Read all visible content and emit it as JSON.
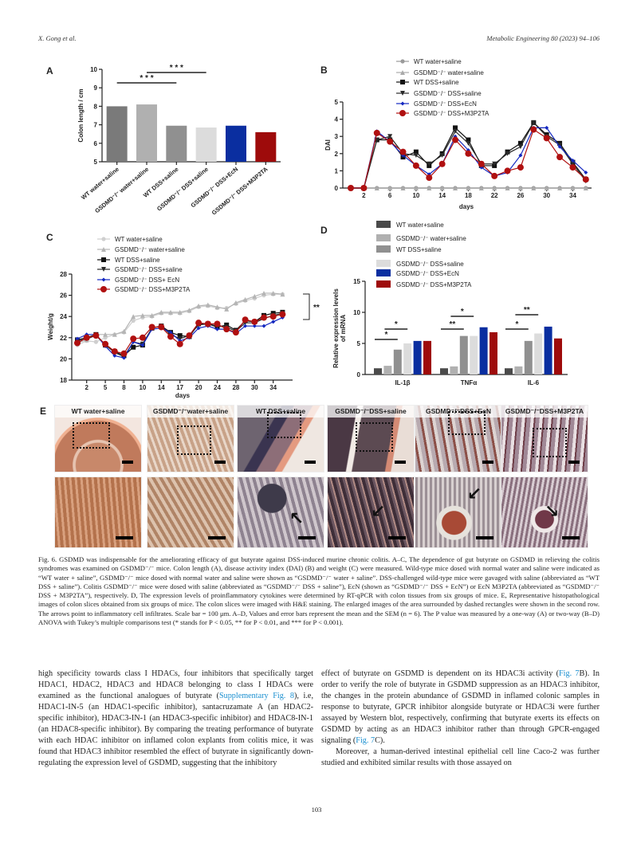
{
  "header": {
    "authors": "X. Gong et al.",
    "journal": "Metabolic Engineering 80 (2023) 94–106"
  },
  "page_number": "103",
  "groups": [
    "WT water+saline",
    "GSDMD⁻/⁻ water+saline",
    "WT DSS+saline",
    "GSDMD⁻/⁻ DSS+saline",
    "GSDMD⁻/⁻ DSS+EcN",
    "GSDMD⁻/⁻ DSS+M3P2TA"
  ],
  "colors": {
    "wt_water": "#7a7a7a",
    "gsdmd_water": "#b0b0b0",
    "wt_dss": "#909090",
    "gsdmd_dss": "#dcdcdc",
    "ecn": "#0a2ea0",
    "m3p2ta": "#9e0b0b",
    "link": "#1a8fd0"
  },
  "chart_data": [
    {
      "panel": "A",
      "type": "bar",
      "ylabel": "Colon length / cm",
      "xlabel": "",
      "ylim": [
        5,
        10
      ],
      "yticks": [
        5,
        6,
        7,
        8,
        9,
        10
      ],
      "categories": [
        "WT water+saline",
        "GSDMD⁻/⁻ water+saline",
        "WT DSS+saline",
        "GSDMD⁻/⁻ DSS+saline",
        "GSDMD⁻/⁻ DSS+EcN",
        "GSDMD⁻/⁻ DSS+M3P2TA"
      ],
      "values": [
        8.0,
        8.1,
        6.95,
        6.85,
        6.95,
        6.6
      ],
      "significance": [
        {
          "from": 0,
          "to": 2,
          "label": "* * *"
        },
        {
          "from": 1,
          "to": 3,
          "label": "* * *"
        }
      ]
    },
    {
      "panel": "B",
      "type": "line",
      "ylabel": "DAI",
      "xlabel": "days",
      "ylim": [
        0,
        5
      ],
      "yticks": [
        0,
        1,
        2,
        3,
        4,
        5
      ],
      "xticks": [
        2,
        6,
        10,
        14,
        18,
        22,
        26,
        30,
        34
      ],
      "x": [
        0,
        2,
        4,
        6,
        8,
        10,
        12,
        14,
        16,
        18,
        20,
        22,
        24,
        26,
        28,
        30,
        32,
        34,
        36
      ],
      "legend": "top",
      "series": [
        {
          "name": "WT water+saline",
          "marker": "circle",
          "color": "#9a9a9a",
          "values": [
            0,
            0,
            0,
            0,
            0,
            0,
            0,
            0,
            0,
            0,
            0,
            0,
            0,
            0,
            0,
            0,
            0,
            0,
            0
          ]
        },
        {
          "name": "GSDMD⁻/⁻ water+saline",
          "marker": "triangle",
          "color": "#aaaaaa",
          "values": [
            0,
            0,
            0,
            0,
            0,
            0,
            0,
            0,
            0,
            0,
            0,
            0,
            0,
            0,
            0,
            0,
            0,
            0,
            0
          ]
        },
        {
          "name": "WT DSS+saline",
          "marker": "square",
          "color": "#111111",
          "values": [
            0,
            0,
            2.8,
            2.8,
            1.8,
            2.1,
            1.3,
            2.0,
            3.5,
            2.8,
            1.3,
            1.3,
            2.1,
            2.6,
            3.8,
            3.1,
            2.6,
            1.5,
            0.5
          ]
        },
        {
          "name": "GSDMD⁻/⁻ DSS+saline",
          "marker": "triangle-down",
          "color": "#2a2a2a",
          "values": [
            0,
            0,
            2.8,
            3.0,
            2.0,
            1.9,
            1.4,
            1.9,
            3.3,
            2.6,
            1.4,
            1.4,
            2.0,
            2.4,
            3.8,
            3.0,
            2.5,
            1.4,
            0.4
          ]
        },
        {
          "name": "GSDMD⁻/⁻ DSS+EcN",
          "marker": "diamond",
          "color": "#1428c0",
          "values": [
            0,
            0,
            3.3,
            2.7,
            1.9,
            1.3,
            0.8,
            1.4,
            3.0,
            2.2,
            1.2,
            0.7,
            0.9,
            1.9,
            3.5,
            3.5,
            2.4,
            1.6,
            0.9
          ]
        },
        {
          "name": "GSDMD⁻/⁻ DSS+M3P2TA",
          "marker": "big-circle",
          "color": "#b01010",
          "values": [
            0,
            0,
            3.2,
            2.7,
            2.1,
            1.3,
            0.6,
            1.4,
            2.8,
            2.0,
            1.4,
            0.7,
            1.0,
            1.2,
            3.4,
            2.9,
            1.8,
            1.2,
            0.5
          ]
        }
      ]
    },
    {
      "panel": "C",
      "type": "line",
      "ylabel": "Weight/g",
      "xlabel": "days",
      "ylim": [
        18,
        28
      ],
      "yticks": [
        18,
        20,
        22,
        24,
        26,
        28
      ],
      "xticks": [
        2,
        5,
        8,
        10,
        14,
        17,
        20,
        24,
        28,
        30,
        34
      ],
      "legend": "top-left",
      "significance": {
        "label": "**"
      },
      "series": [
        {
          "name": "WT water+saline",
          "marker": "circle",
          "color": "#cfcfcf",
          "values": [
            21.3,
            21.7,
            21.6,
            22.0,
            22.3,
            22.5,
            23.6,
            23.9,
            24.0,
            24.3,
            24.3,
            24.3,
            24.5,
            24.9,
            25.0,
            24.8,
            24.8,
            25.2,
            25.5,
            25.7,
            26.0,
            26.1,
            26.1
          ]
        },
        {
          "name": "GSDMD⁻/⁻ water+saline",
          "marker": "triangle",
          "color": "#b5b5b5",
          "values": [
            21.5,
            21.8,
            22.3,
            22.3,
            22.3,
            22.6,
            24.0,
            24.1,
            24.1,
            24.4,
            24.4,
            24.4,
            24.6,
            25.0,
            25.1,
            24.9,
            24.7,
            25.3,
            25.6,
            25.9,
            26.2,
            26.2,
            26.1
          ]
        },
        {
          "name": "WT DSS+saline",
          "marker": "square",
          "color": "#111111",
          "values": [
            21.8,
            22.0,
            22.3,
            21.3,
            20.7,
            20.3,
            21.1,
            21.3,
            22.9,
            23.1,
            22.5,
            22.2,
            22.1,
            23.3,
            23.3,
            23.0,
            23.2,
            22.7,
            23.6,
            23.5,
            24.1,
            24.3,
            24.4
          ]
        },
        {
          "name": "GSDMD⁻/⁻ DSS+saline",
          "marker": "triangle-down",
          "color": "#2a2a2a",
          "values": [
            21.7,
            21.9,
            22.2,
            21.3,
            20.6,
            20.2,
            21.6,
            21.4,
            22.9,
            23.1,
            22.3,
            21.9,
            22.2,
            23.2,
            23.3,
            23.1,
            23.0,
            22.6,
            23.4,
            23.4,
            23.8,
            24.1,
            24.3
          ]
        },
        {
          "name": "GSDMD⁻/⁻ DSS+ EcN",
          "marker": "diamond",
          "color": "#1428c0",
          "values": [
            21.9,
            22.3,
            22.3,
            21.2,
            20.3,
            20.1,
            21.6,
            21.3,
            22.8,
            22.9,
            22.5,
            21.7,
            22.0,
            22.9,
            23.1,
            22.8,
            22.8,
            22.4,
            23.1,
            23.1,
            23.1,
            23.5,
            23.9
          ]
        },
        {
          "name": "GSDMD⁻/⁻ DSS+M3P2TA",
          "marker": "big-circle",
          "color": "#b01010",
          "values": [
            21.5,
            22.0,
            22.2,
            21.4,
            20.7,
            20.5,
            21.9,
            22.0,
            23.0,
            23.0,
            22.1,
            21.4,
            22.2,
            23.4,
            23.3,
            23.3,
            22.8,
            22.5,
            23.7,
            23.5,
            23.9,
            24.0,
            24.2
          ]
        }
      ]
    },
    {
      "panel": "D",
      "type": "bar",
      "ylabel": "Relative expression levels of mRNA",
      "ylabel_lines": [
        "Relative expression levels",
        "of mRNA"
      ],
      "ylim": [
        0,
        15
      ],
      "yticks": [
        0,
        5,
        10,
        15
      ],
      "categories": [
        "IL-1β",
        "TNFα",
        "IL-6"
      ],
      "legend": "top",
      "series": [
        {
          "name": "WT water+saline",
          "color": "#4a4a4a",
          "values": [
            1.0,
            1.0,
            1.0
          ]
        },
        {
          "name": "GSDMD⁻/⁻ water+saline",
          "color": "#b0b0b0",
          "values": [
            1.4,
            1.3,
            1.3
          ]
        },
        {
          "name": "WT DSS+saline",
          "color": "#909090",
          "values": [
            4.0,
            6.2,
            5.4
          ]
        },
        {
          "name": "GSDMD⁻/⁻ DSS+saline",
          "color": "#dcdcdc",
          "values": [
            5.0,
            6.2,
            6.6
          ]
        },
        {
          "name": "GSDMD⁻/⁻ DSS+EcN",
          "color": "#0a2ea0",
          "values": [
            5.4,
            7.6,
            7.7
          ]
        },
        {
          "name": "GSDMD⁻/⁻ DSS+M3P2TA",
          "color": "#9e0b0b",
          "values": [
            5.4,
            6.8,
            5.8
          ]
        }
      ],
      "significance": [
        {
          "category": 0,
          "from": 0,
          "to": 2,
          "label": "*"
        },
        {
          "category": 0,
          "from": 1,
          "to": 3,
          "label": "*"
        },
        {
          "category": 1,
          "from": 0,
          "to": 2,
          "label": "**"
        },
        {
          "category": 1,
          "from": 1,
          "to": 3,
          "label": "*"
        },
        {
          "category": 2,
          "from": 0,
          "to": 2,
          "label": "*"
        },
        {
          "category": 2,
          "from": 1,
          "to": 3,
          "label": "**"
        }
      ]
    }
  ],
  "panel_letters": [
    "A",
    "B",
    "C",
    "D",
    "E"
  ],
  "histology": {
    "labels": [
      "WT water+saline",
      "GSDMD⁻/⁻water+saline",
      "WT DSS+saline",
      "GSDMD⁻/⁻DSS+saline",
      "GSDMD⁻/⁻DSS+EcN",
      "GSDMD⁻/⁻DSS+M3P2TA"
    ]
  },
  "caption": {
    "title": "Fig. 6. GSDMD was indispensable for the ameliorating efficacy of gut butyrate against DSS-induced murine chronic colitis.",
    "body": " A–C, The dependence of gut butyrate on GSDMD in relieving the colitis syndromes was examined on GSDMD⁻/⁻ mice. Colon length (A), disease activity index (DAI) (B) and weight (C) were measured. Wild-type mice dosed with normal water and saline were indicated as “WT water + saline”, GSDMD⁻/⁻ mice dosed with normal water and saline were shown as “GSDMD⁻/⁻ water + saline”. DSS-challenged wild-type mice were gavaged with saline (abbreviated as “WT DSS + saline”). Colitis GSDMD⁻/⁻ mice were dosed with saline (abbreviated as “GSDMD⁻/⁻ DSS + saline”), EcN (shown as “GSDMD⁻/⁻ DSS + EcN”) or EcN M3P2TA (abbreviated as “GSDMD⁻/⁻ DSS + M3P2TA”), respectively. D, The expression levels of proinflammatory cytokines were determined by RT-qPCR with colon tissues from six groups of mice. E, Representative histopathological images of colon slices obtained from six groups of mice. The colon slices were imaged with H&E staining. The enlarged images of the area surrounded by dashed rectangles were shown in the second row. The arrows point to inflammatory cell infiltrates. Scale bar = 100 μm. A–D, Values and error bars represent the mean and the SEM (n = 6). The P value was measured by a one-way (A) or two-way (B–D) ANOVA with Tukey’s multiple comparisons test (* stands for P < 0.05, ** for P < 0.01, and *** for P < 0.001)."
  },
  "body_left": {
    "t1": "high specificity towards class I HDACs, four inhibitors that specifically target HDAC1, HDAC2, HDAC3 and HDAC8 belonging to class I HDACs were examined as the functional analogues of butyrate (",
    "link1": "Supplementary Fig. 8",
    "t2": "), i.e, HDAC1-IN-5 (an HDAC1-specific inhibitor), santacruzamate A (an HDAC2-specific inhibitor), HDAC3-IN-1 (an HDAC3-specific inhibitor) and HDAC8-IN-1 (an HDAC8-specific inhibitor). By comparing the treating performance of butyrate with each HDAC inhibitor on inflamed colon explants from colitis mice, it was found that HDAC3 inhibitor resembled the effect of butyrate in significantly down-regulating the expression level of GSDMD, suggesting that the inhibitory"
  },
  "body_right": {
    "t1": "effect of butyrate on GSDMD is dependent on its HDAC3i activity (",
    "link1": "Fig. 7",
    "t2": "B). In order to verify the role of butyrate in GSDMD suppression as an HDAC3 inhibitor, the changes in the protein abundance of GSDMD in inflamed colonic samples in response to butyrate, GPCR inhibitor alongside butyrate or HDAC3i were further assayed by Western blot, respectively, confirming that butyrate exerts its effects on GSDMD by acting as an HDAC3 inhibitor rather than through GPCR-engaged signaling (",
    "link2": "Fig. 7",
    "t3": "C).",
    "p2": "Moreover, a human-derived intestinal epithelial cell line Caco-2 was further studied and exhibited similar results with those assayed on"
  }
}
